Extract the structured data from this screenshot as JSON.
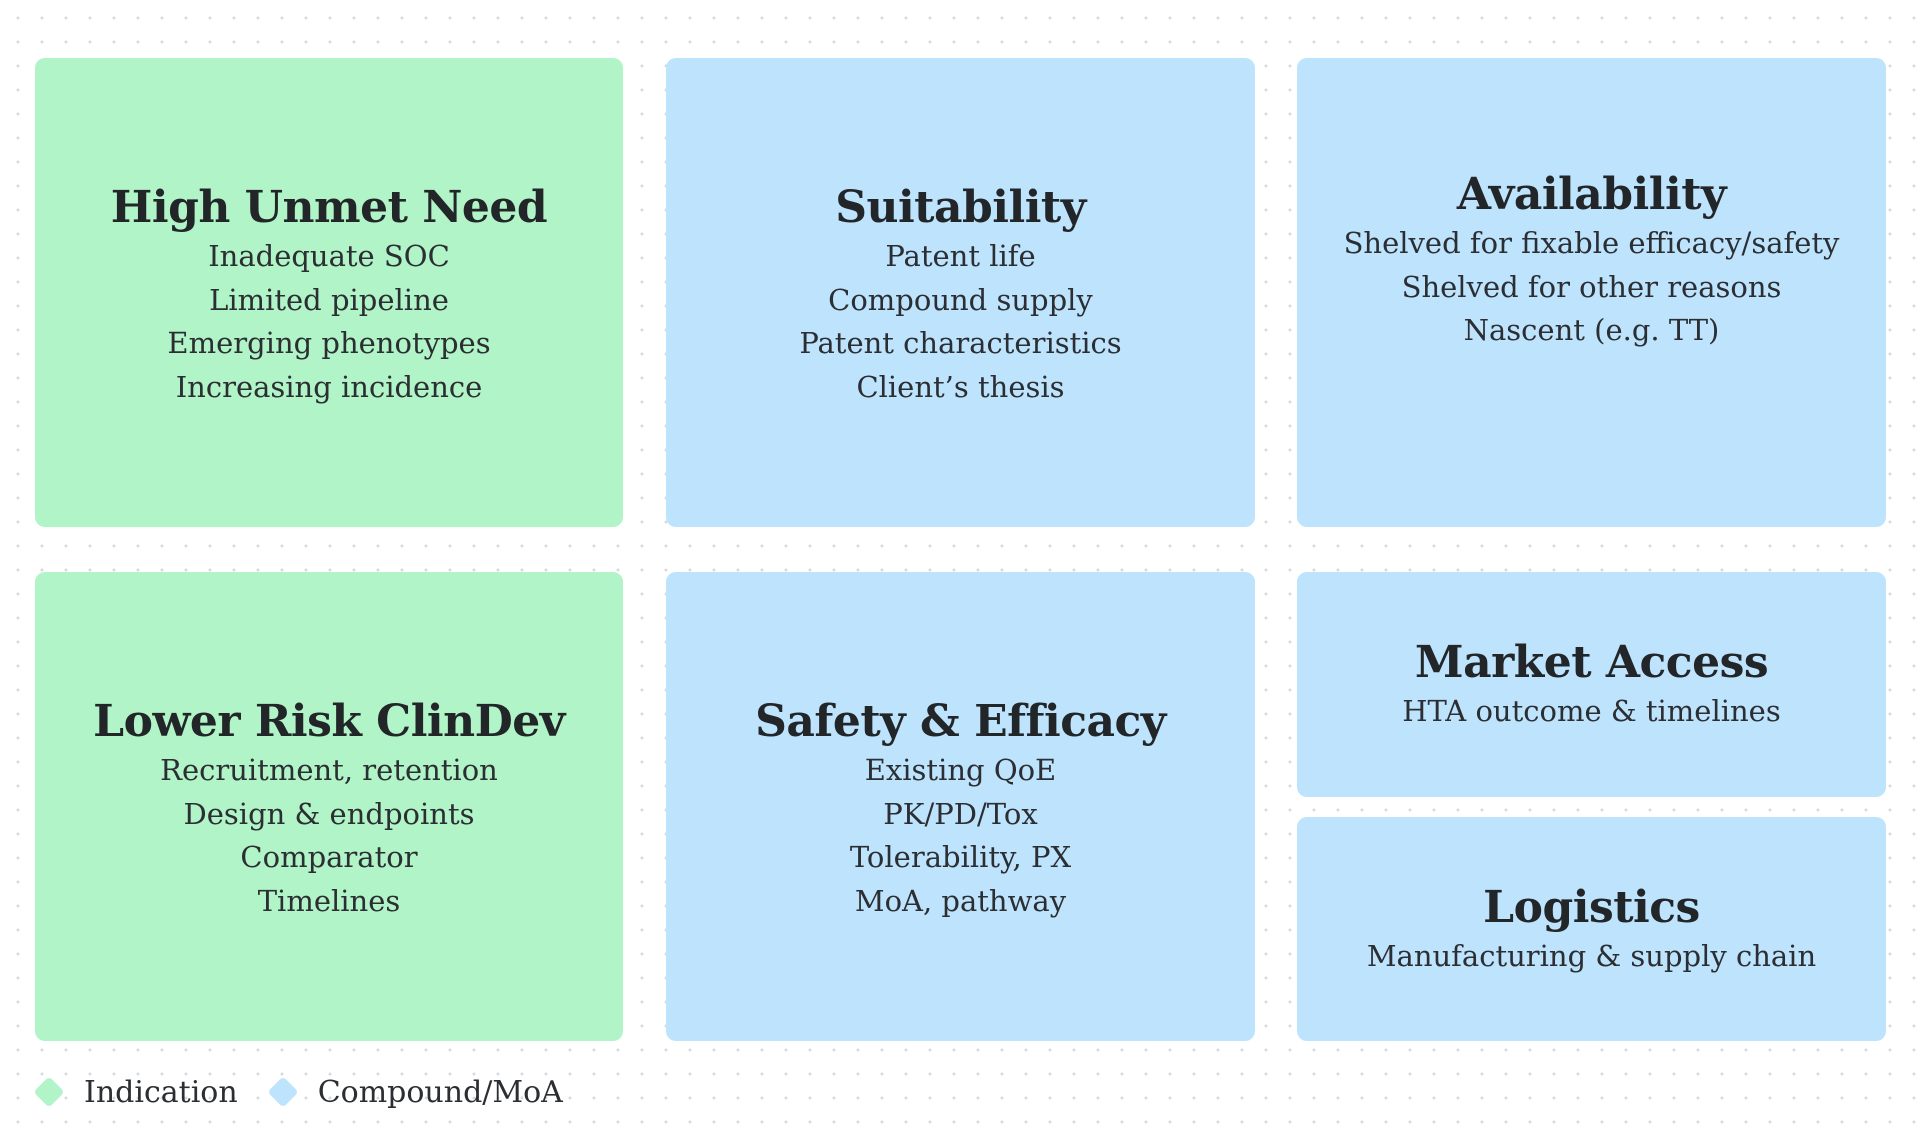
{
  "colors": {
    "indication": "#b0f4c7",
    "compound_moa": "#bde3fd",
    "text": "#232629"
  },
  "cards": {
    "high_unmet_need": {
      "title": "High Unmet Need",
      "lines": [
        "Inadequate SOC",
        "Limited pipeline",
        "Emerging phenotypes",
        "Increasing incidence"
      ]
    },
    "suitability": {
      "title": "Suitability",
      "lines": [
        "Patent life",
        "Compound supply",
        "Patent characteristics",
        "Client’s thesis"
      ]
    },
    "availability": {
      "title": "Availability",
      "lines": [
        "Shelved for fixable efficacy/safety",
        "Shelved for other reasons",
        "Nascent (e.g. TT)"
      ]
    },
    "lower_risk_clindev": {
      "title": "Lower Risk ClinDev",
      "lines": [
        "Recruitment, retention",
        "Design & endpoints",
        "Comparator",
        "Timelines"
      ]
    },
    "safety_efficacy": {
      "title": "Safety & Efficacy",
      "lines": [
        "Existing QoE",
        "PK/PD/Tox",
        "Tolerability, PX",
        "MoA, pathway"
      ]
    },
    "market_access": {
      "title": "Market Access",
      "lines": [
        "HTA outcome & timelines"
      ]
    },
    "logistics": {
      "title": "Logistics",
      "lines": [
        "Manufacturing & supply chain"
      ]
    }
  },
  "legend": [
    {
      "label": "Indication",
      "color": "#b0f4c7"
    },
    {
      "label": "Compound/MoA",
      "color": "#bde3fd"
    }
  ]
}
